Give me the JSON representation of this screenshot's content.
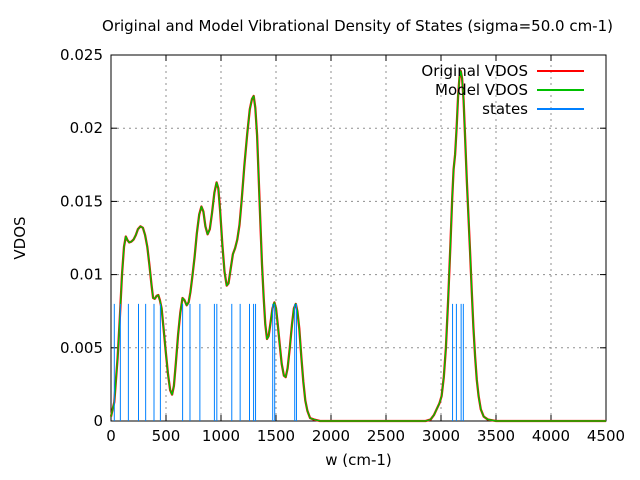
{
  "title": "Original and Model Vibrational Density of States (sigma=50.0 cm-1)",
  "axes": {
    "xlabel": "w (cm-1)",
    "ylabel": "VDOS"
  },
  "legend": {
    "position": "top-right",
    "entries": [
      {
        "label": "Original VDOS",
        "color": "#ff0000"
      },
      {
        "label": "Model VDOS",
        "color": "#00c000"
      },
      {
        "label": "states",
        "color": "#0080ff"
      }
    ]
  },
  "chart_data": {
    "type": "line",
    "title": "Original and Model Vibrational Density of States (sigma=50.0 cm-1)",
    "xlabel": "w (cm-1)",
    "ylabel": "VDOS",
    "xlim": [
      0,
      4500
    ],
    "ylim": [
      0,
      0.025
    ],
    "xticks": [
      0,
      500,
      1000,
      1500,
      2000,
      2500,
      3000,
      3500,
      4000,
      4500
    ],
    "ytick_values": [
      0,
      0.005,
      0.01,
      0.015,
      0.02,
      0.025
    ],
    "ytick_labels": [
      "0",
      "0.005",
      "0.01",
      "0.015",
      "0.02",
      "0.025"
    ],
    "grid": true,
    "legend_position": "top-right",
    "curve_points": [
      [
        0,
        0.0003
      ],
      [
        30,
        0.0013
      ],
      [
        60,
        0.0043
      ],
      [
        80,
        0.007
      ],
      [
        100,
        0.01
      ],
      [
        118,
        0.0119
      ],
      [
        135,
        0.0126
      ],
      [
        150,
        0.01235
      ],
      [
        165,
        0.0122
      ],
      [
        185,
        0.01225
      ],
      [
        205,
        0.0124
      ],
      [
        225,
        0.0127
      ],
      [
        245,
        0.0131
      ],
      [
        268,
        0.0133
      ],
      [
        290,
        0.0132
      ],
      [
        310,
        0.0127
      ],
      [
        330,
        0.0119
      ],
      [
        350,
        0.0106
      ],
      [
        368,
        0.0093
      ],
      [
        383,
        0.0084
      ],
      [
        398,
        0.00835
      ],
      [
        415,
        0.00855
      ],
      [
        430,
        0.0086
      ],
      [
        445,
        0.00825
      ],
      [
        460,
        0.0077
      ],
      [
        478,
        0.0063
      ],
      [
        498,
        0.0047
      ],
      [
        518,
        0.0032
      ],
      [
        538,
        0.0021
      ],
      [
        555,
        0.0018
      ],
      [
        572,
        0.0024
      ],
      [
        590,
        0.004
      ],
      [
        610,
        0.0059
      ],
      [
        630,
        0.0074
      ],
      [
        650,
        0.0084
      ],
      [
        668,
        0.00825
      ],
      [
        688,
        0.0079
      ],
      [
        705,
        0.0081
      ],
      [
        722,
        0.0088
      ],
      [
        740,
        0.0099
      ],
      [
        760,
        0.0112
      ],
      [
        780,
        0.0128
      ],
      [
        802,
        0.0141
      ],
      [
        822,
        0.01465
      ],
      [
        840,
        0.0143
      ],
      [
        858,
        0.0133
      ],
      [
        878,
        0.01275
      ],
      [
        898,
        0.0131
      ],
      [
        918,
        0.0142
      ],
      [
        940,
        0.0156
      ],
      [
        960,
        0.0163
      ],
      [
        975,
        0.0159
      ],
      [
        993,
        0.0143
      ],
      [
        1012,
        0.0121
      ],
      [
        1032,
        0.0102
      ],
      [
        1052,
        0.00925
      ],
      [
        1068,
        0.0094
      ],
      [
        1088,
        0.0104
      ],
      [
        1108,
        0.0114
      ],
      [
        1128,
        0.0118
      ],
      [
        1148,
        0.0124
      ],
      [
        1168,
        0.0134
      ],
      [
        1188,
        0.0151
      ],
      [
        1212,
        0.0174
      ],
      [
        1238,
        0.0196
      ],
      [
        1262,
        0.0213
      ],
      [
        1282,
        0.022
      ],
      [
        1297,
        0.0222
      ],
      [
        1312,
        0.0214
      ],
      [
        1328,
        0.0195
      ],
      [
        1343,
        0.0166
      ],
      [
        1358,
        0.0135
      ],
      [
        1373,
        0.0107
      ],
      [
        1388,
        0.0084
      ],
      [
        1403,
        0.0066
      ],
      [
        1418,
        0.0056
      ],
      [
        1433,
        0.0058
      ],
      [
        1450,
        0.0067
      ],
      [
        1468,
        0.0077
      ],
      [
        1485,
        0.0081
      ],
      [
        1500,
        0.0077
      ],
      [
        1515,
        0.0067
      ],
      [
        1533,
        0.0053
      ],
      [
        1552,
        0.0039
      ],
      [
        1572,
        0.0031
      ],
      [
        1588,
        0.003
      ],
      [
        1605,
        0.0036
      ],
      [
        1625,
        0.005
      ],
      [
        1645,
        0.0066
      ],
      [
        1663,
        0.0077
      ],
      [
        1680,
        0.008
      ],
      [
        1695,
        0.0075
      ],
      [
        1712,
        0.0063
      ],
      [
        1730,
        0.0044
      ],
      [
        1748,
        0.0027
      ],
      [
        1766,
        0.0014
      ],
      [
        1785,
        0.0007
      ],
      [
        1810,
        0.0002
      ],
      [
        1845,
        0.0001
      ],
      [
        1900,
        0
      ],
      [
        2200,
        0
      ],
      [
        2600,
        0
      ],
      [
        2860,
        0
      ],
      [
        2905,
        0.0001
      ],
      [
        2935,
        0.0004
      ],
      [
        2960,
        0.0008
      ],
      [
        2985,
        0.0012
      ],
      [
        3005,
        0.0017
      ],
      [
        3025,
        0.003
      ],
      [
        3045,
        0.005
      ],
      [
        3065,
        0.0082
      ],
      [
        3085,
        0.012
      ],
      [
        3102,
        0.0152
      ],
      [
        3115,
        0.0172
      ],
      [
        3128,
        0.0182
      ],
      [
        3142,
        0.02
      ],
      [
        3155,
        0.0222
      ],
      [
        3168,
        0.0235
      ],
      [
        3180,
        0.0239
      ],
      [
        3192,
        0.0234
      ],
      [
        3205,
        0.0219
      ],
      [
        3220,
        0.0192
      ],
      [
        3235,
        0.0163
      ],
      [
        3250,
        0.0139
      ],
      [
        3265,
        0.0115
      ],
      [
        3280,
        0.0088
      ],
      [
        3295,
        0.0064
      ],
      [
        3310,
        0.0044
      ],
      [
        3325,
        0.0028
      ],
      [
        3342,
        0.0017
      ],
      [
        3362,
        0.0008
      ],
      [
        3388,
        0.0003
      ],
      [
        3425,
        0.0001
      ],
      [
        3500,
        0
      ],
      [
        4000,
        0
      ],
      [
        4500,
        0
      ]
    ],
    "series": [
      {
        "name": "Original VDOS",
        "type": "line",
        "color": "#ff0000",
        "points_key": "curve_points"
      },
      {
        "name": "Model VDOS",
        "type": "line",
        "color": "#00c000",
        "points_key": "curve_points"
      },
      {
        "name": "states",
        "type": "impulses",
        "color": "#0080ff",
        "height": 0.008,
        "x": [
          30,
          85,
          158,
          250,
          315,
          391,
          449,
          651,
          718,
          808,
          940,
          962,
          1098,
          1174,
          1259,
          1296,
          1314,
          1470,
          1488,
          1670,
          1686,
          3105,
          3140,
          3183,
          3203
        ]
      }
    ]
  }
}
